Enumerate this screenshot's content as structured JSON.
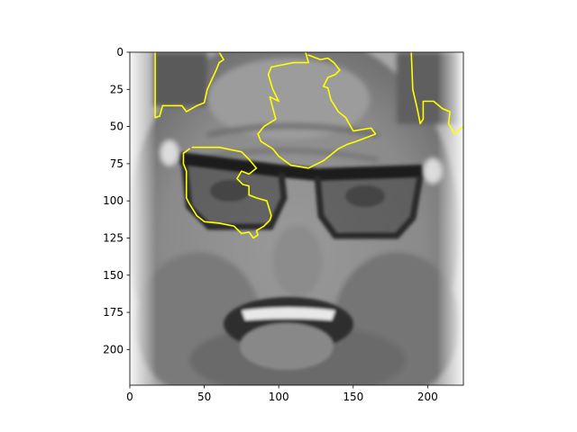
{
  "chart_data": {
    "type": "image",
    "title": "",
    "xlabel": "",
    "ylabel": "",
    "xlim": [
      0,
      224
    ],
    "ylim": [
      224,
      0
    ],
    "x_ticks": [
      0,
      50,
      100,
      150,
      200
    ],
    "y_ticks": [
      0,
      25,
      50,
      75,
      100,
      125,
      150,
      175,
      200
    ],
    "image_description": "grayscale close-up face with glasses, open mouth",
    "overlay": {
      "color": "#ffff00",
      "contours": [
        {
          "name": "top-left-hair",
          "points": [
            [
              17,
              0
            ],
            [
              17,
              44
            ],
            [
              20,
              43
            ],
            [
              22,
              36
            ],
            [
              35,
              36
            ],
            [
              38,
              40
            ],
            [
              45,
              36
            ],
            [
              50,
              34
            ],
            [
              52,
              25
            ],
            [
              58,
              12
            ],
            [
              60,
              7
            ],
            [
              63,
              5
            ],
            [
              60,
              0
            ]
          ]
        },
        {
          "name": "forehead",
          "points": [
            [
              118,
              0
            ],
            [
              120,
              7
            ],
            [
              110,
              7
            ],
            [
              95,
              10
            ],
            [
              93,
              15
            ],
            [
              96,
              25
            ],
            [
              100,
              33
            ],
            [
              94,
              30
            ],
            [
              98,
              45
            ],
            [
              90,
              50
            ],
            [
              86,
              55
            ],
            [
              88,
              60
            ],
            [
              96,
              65
            ],
            [
              100,
              70
            ],
            [
              108,
              76
            ],
            [
              120,
              78
            ],
            [
              130,
              73
            ],
            [
              140,
              65
            ],
            [
              146,
              62
            ],
            [
              152,
              60
            ],
            [
              160,
              57
            ],
            [
              165,
              55
            ],
            [
              162,
              51
            ],
            [
              150,
              53
            ],
            [
              145,
              44
            ],
            [
              140,
              40
            ],
            [
              135,
              32
            ],
            [
              133,
              24
            ],
            [
              130,
              23
            ],
            [
              133,
              17
            ],
            [
              138,
              15
            ],
            [
              141,
              12
            ],
            [
              137,
              7
            ],
            [
              133,
              4
            ],
            [
              128,
              5
            ],
            [
              120,
              2
            ]
          ]
        },
        {
          "name": "top-right-hair",
          "points": [
            [
              189,
              0
            ],
            [
              190,
              25
            ],
            [
              193,
              38
            ],
            [
              195,
              48
            ],
            [
              197,
              45
            ],
            [
              197,
              33
            ],
            [
              204,
              33
            ],
            [
              210,
              38
            ],
            [
              215,
              40
            ],
            [
              214,
              48
            ],
            [
              218,
              55
            ],
            [
              224,
              50
            ]
          ]
        },
        {
          "name": "left-eye-region",
          "points": [
            [
              40,
              65
            ],
            [
              36,
              68
            ],
            [
              36,
              75
            ],
            [
              38,
              80
            ],
            [
              38,
              98
            ],
            [
              40,
              102
            ],
            [
              45,
              110
            ],
            [
              50,
              114
            ],
            [
              60,
              115
            ],
            [
              70,
              117
            ],
            [
              75,
              122
            ],
            [
              80,
              121
            ],
            [
              83,
              125
            ],
            [
              86,
              123
            ],
            [
              85,
              120
            ],
            [
              90,
              117
            ],
            [
              94,
              113
            ],
            [
              95,
              110
            ],
            [
              92,
              100
            ],
            [
              85,
              98
            ],
            [
              80,
              96
            ],
            [
              80,
              90
            ],
            [
              76,
              89
            ],
            [
              72,
              85
            ],
            [
              75,
              80
            ],
            [
              80,
              82
            ],
            [
              85,
              78
            ],
            [
              80,
              72
            ],
            [
              75,
              67
            ],
            [
              60,
              64
            ],
            [
              50,
              64
            ],
            [
              42,
              64
            ]
          ]
        }
      ]
    }
  }
}
